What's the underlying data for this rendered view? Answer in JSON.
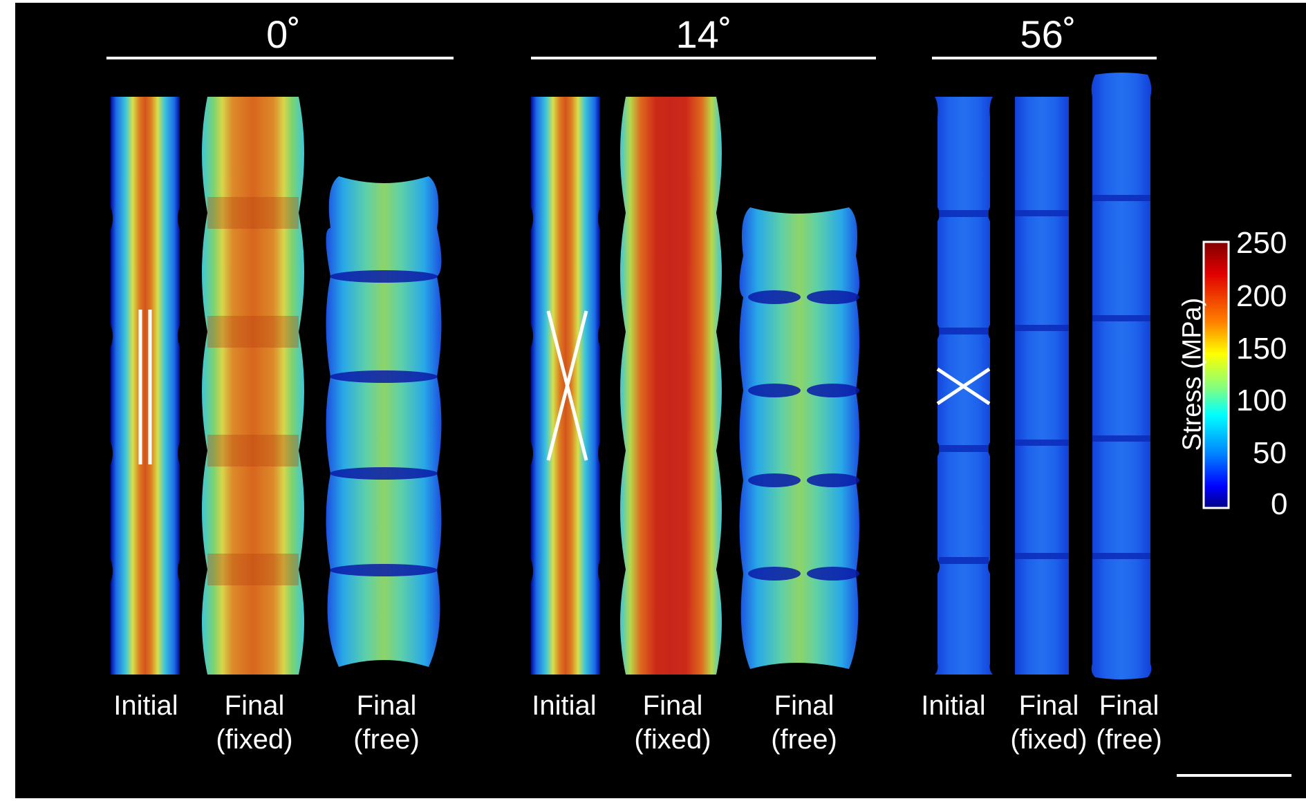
{
  "groups": [
    {
      "title": "0˚",
      "labels": [
        [
          "Initial"
        ],
        [
          "Final",
          "(fixed)"
        ],
        [
          "Final",
          "(free)"
        ]
      ]
    },
    {
      "title": "14˚",
      "labels": [
        [
          "Initial"
        ],
        [
          "Final",
          "(fixed)"
        ],
        [
          "Final",
          "(free)"
        ]
      ]
    },
    {
      "title": "56˚",
      "labels": [
        [
          "Initial"
        ],
        [
          "Final",
          "(fixed)"
        ],
        [
          "Final",
          "(free)"
        ]
      ]
    }
  ],
  "colorbar": {
    "title": "Stress (MPa)",
    "ticks": [
      "250",
      "200",
      "150",
      "100",
      "50",
      "0"
    ],
    "min": 0,
    "max": 250,
    "colormap": "jet"
  },
  "colors": {
    "background": "#000000",
    "red": "#c8261a",
    "orange": "#d9531c",
    "green": "#7fd36e",
    "cyan": "#3ec7d8",
    "blue": "#1f5fe8",
    "darkblue": "#000a9c"
  }
}
